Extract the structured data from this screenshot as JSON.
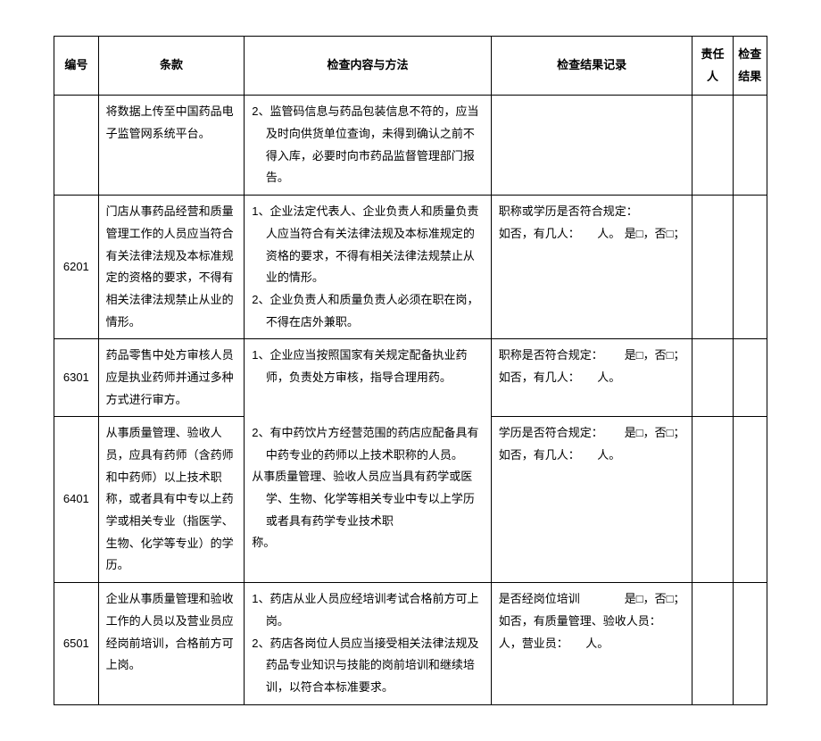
{
  "header": {
    "id": "编号",
    "clause": "条款",
    "method": "检查内容与方法",
    "result": "检查结果记录",
    "person": "责任人",
    "check": "检查结果"
  },
  "rows": [
    {
      "id": "",
      "clause": "将数据上传至中国药品电子监管网系统平台。",
      "method": "2、监管码信息与药品包装信息不符的，应当及时向供货单位查询，未得到确认之前不得入库，必要时向市药品监督管理部门报告。",
      "result": "",
      "top_open": true
    },
    {
      "id": "6201",
      "clause": "门店从事药品经营和质量管理工作的人员应当符合有关法律法规及本标准规定的资格的要求，不得有相关法律法规禁止从业的情形。",
      "method_items": [
        "1、企业法定代表人、企业负责人和质量负责人应当符合有关法律法规及本标准规定的资格的要求，不得有相关法律法规禁止从业的情形。",
        "2、企业负责人和质量负责人必须在职在岗，不得在店外兼职。"
      ],
      "result_q": "职称或学历是否符合规定：",
      "result_opt": "是□，否□；",
      "result_sub": "如否，有几人：　　人。"
    },
    {
      "id": "6301",
      "clause": "药品零售中处方审核人员应是执业药师并通过多种方式进行审方。",
      "method_items": [
        "1、企业应当按照国家有关规定配备执业药师，负责处方审核，指导合理用药。"
      ],
      "result_q": "职称是否符合规定：",
      "result_opt": "是□，否□；",
      "result_sub": "如否，有几人：　　人。",
      "bottom_open_method": true
    },
    {
      "id": "6401",
      "clause": "从事质量管理、验收人员，应具有药师（含药师和中药师）以上技术职称，或者具有中专以上药学或相关专业（指医学、生物、化学等专业）的学历。",
      "method_items": [
        "2、有中药饮片方经营范围的药店应配备具有中药专业的药师以上技术职称的人员。",
        "从事质量管理、验收人员应当具有药学或医学、生物、化学等相关专业中专以上学历或者具有药学专业技术职",
        "称。"
      ],
      "result_q": "学历是否符合规定：",
      "result_opt": "是□，否□；",
      "result_sub": "如否，有几人：　　人。",
      "top_open_method": true
    },
    {
      "id": "6501",
      "clause": "企业从事质量管理和验收工作的人员以及营业员应经岗前培训，合格前方可上岗。",
      "method_items": [
        "1、药店从业人员应经培训考试合格前方可上岗。",
        "2、药店各岗位人员应当接受相关法律法规及药品专业知识与技能的岗前培训和继续培训，以符合本标准要求。"
      ],
      "result_q": "是否经岗位培训",
      "result_opt": "是□，否□；",
      "result_sub": "如否，有质量管理、验收人员：　人，营业员：　　人。"
    }
  ],
  "style": {
    "font_size": 13,
    "line_height": 1.9,
    "border_color": "#000000",
    "bg_color": "#ffffff",
    "text_color": "#000000"
  }
}
